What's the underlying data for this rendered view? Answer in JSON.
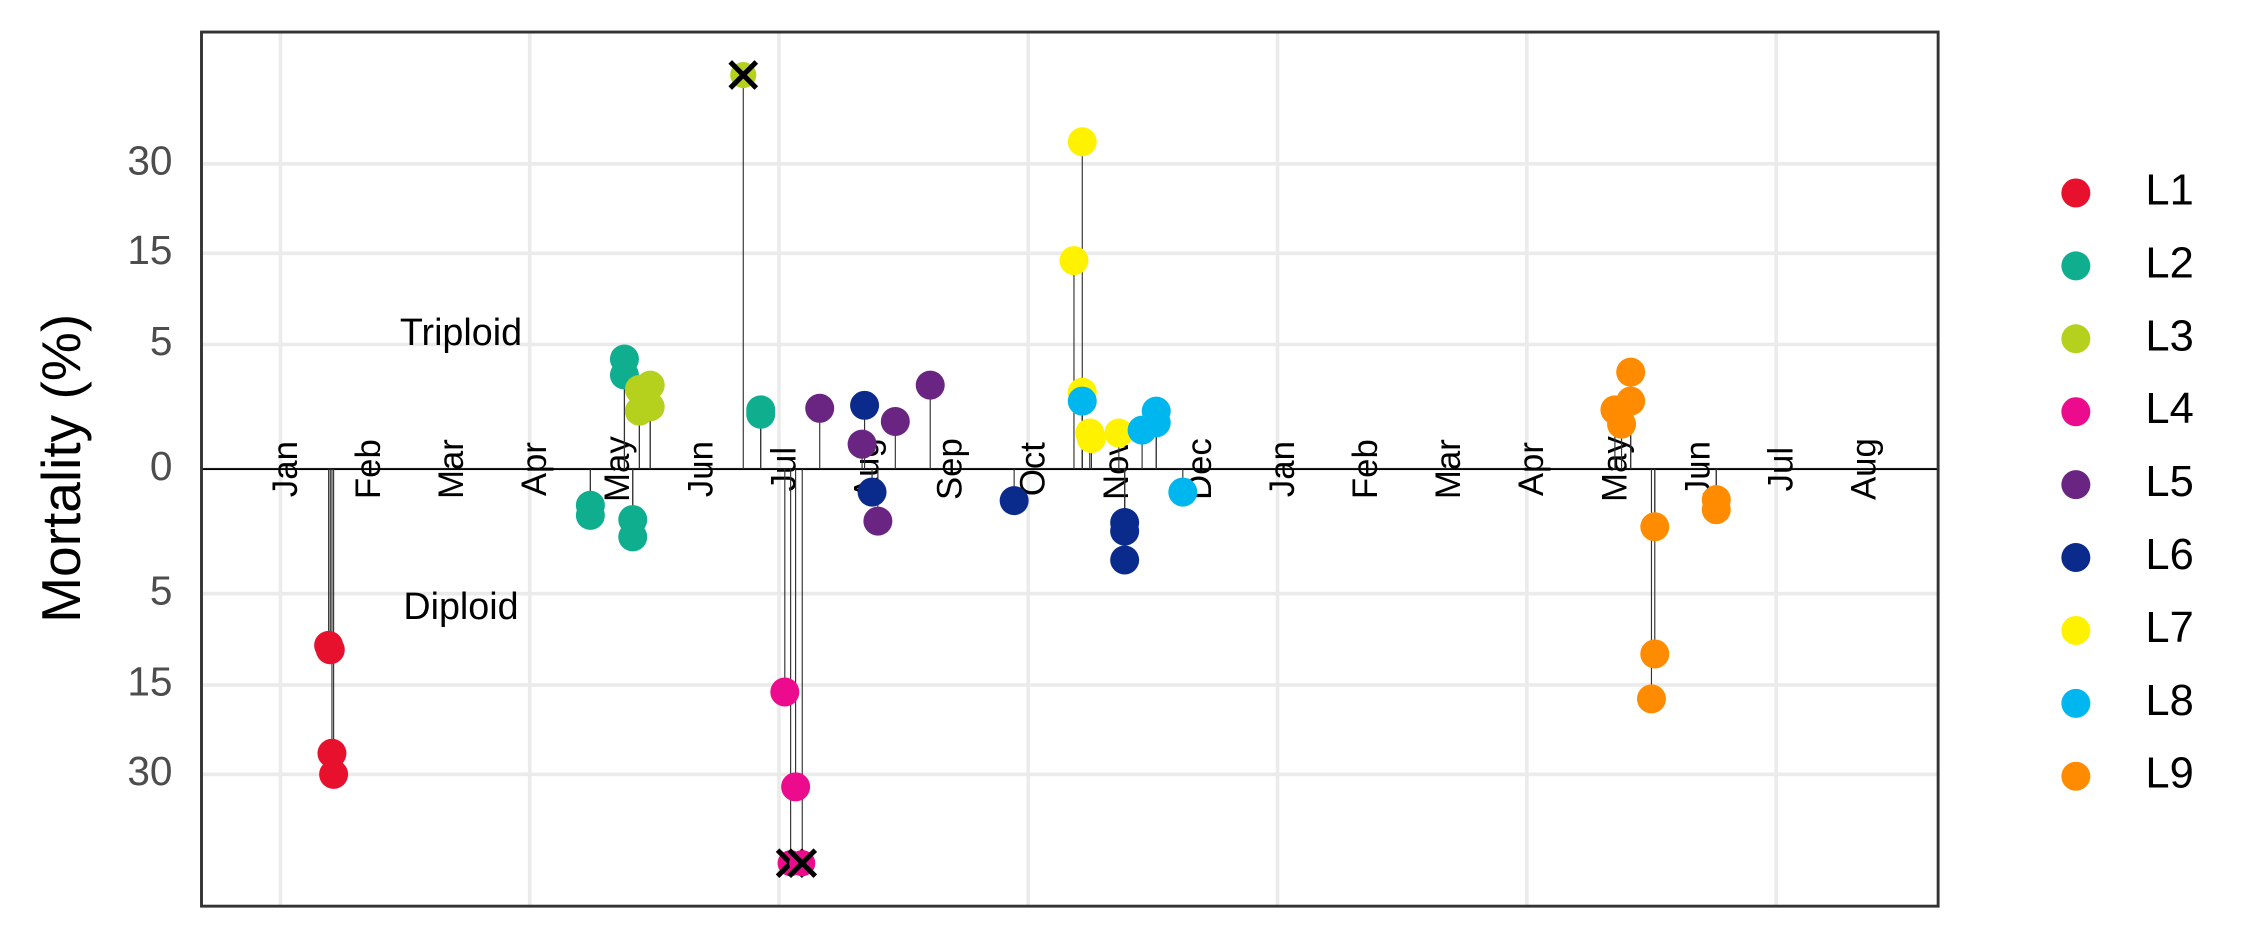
{
  "chart_data": {
    "type": "scatter",
    "y_label": "Mortality (%)",
    "yscale": "signed-sqrt",
    "ylim": [
      -61.5,
      61.5
    ],
    "yticks": [
      {
        "value": -30,
        "label": "30"
      },
      {
        "value": -15,
        "label": "15"
      },
      {
        "value": -5,
        "label": "5"
      },
      0,
      5,
      15,
      30
    ],
    "xlim": [
      0.05,
      20.95
    ],
    "xticks": [
      {
        "value": 1,
        "label": "Jan"
      },
      {
        "value": 2,
        "label": "Feb"
      },
      {
        "value": 3,
        "label": "Mar"
      },
      {
        "value": 4,
        "label": "Apr"
      },
      {
        "value": 5,
        "label": "May"
      },
      {
        "value": 6,
        "label": "Jun"
      },
      {
        "value": 7,
        "label": "Jul"
      },
      {
        "value": 8,
        "label": "Aug"
      },
      {
        "value": 9,
        "label": "Sep"
      },
      {
        "value": 10,
        "label": "Oct"
      },
      {
        "value": 11,
        "label": "Nov"
      },
      {
        "value": 12,
        "label": "Dec"
      },
      {
        "value": 13,
        "label": "Jan"
      },
      {
        "value": 14,
        "label": "Feb"
      },
      {
        "value": 15,
        "label": "Mar"
      },
      {
        "value": 16,
        "label": "Apr"
      },
      {
        "value": 17,
        "label": "May"
      },
      {
        "value": 18,
        "label": "Jun"
      },
      {
        "value": 19,
        "label": "Jul"
      },
      {
        "value": 20,
        "label": "Aug"
      }
    ],
    "grid": true,
    "annotations": [
      "Triploid",
      "Diploid"
    ],
    "series": [
      {
        "name": "L1",
        "color": "#e8112d",
        "x": [
          1.58,
          1.6,
          1.62,
          1.64
        ],
        "values": [
          -10,
          -10.5,
          -26,
          -30
        ]
      },
      {
        "name": "L2",
        "color": "#0fae8f",
        "x": [
          5.14,
          5.14,
          6.78,
          6.78,
          4.73,
          4.73,
          5.24,
          5.24
        ],
        "values": [
          3.9,
          2.85,
          1.13,
          0.97,
          -0.42,
          -0.69,
          -0.82,
          -1.48
        ]
      },
      {
        "name": "L3",
        "color": "#b5d01d",
        "x": [
          5.32,
          5.32,
          5.45,
          5.45,
          6.57
        ],
        "values": [
          2.04,
          1.08,
          2.27,
          1.25,
          50
        ],
        "markers": [
          "o",
          "o",
          "o",
          "o",
          "x"
        ]
      },
      {
        "name": "L4",
        "color": "#ec0b8c",
        "x": [
          7.07,
          7.2,
          7.14,
          7.28
        ],
        "values": [
          -16,
          -32.5,
          -50,
          -50
        ],
        "markers": [
          "o",
          "o",
          "x",
          "x"
        ]
      },
      {
        "name": "L5",
        "color": "#6a2482",
        "x": [
          7.49,
          8.82,
          8.4,
          8.0,
          8.19
        ],
        "values": [
          1.19,
          2.27,
          0.73,
          0.2,
          -0.87
        ]
      },
      {
        "name": "L6",
        "color": "#0a2a8c",
        "x": [
          8.03,
          8.12,
          9.83,
          11.16,
          11.16,
          11.16
        ],
        "values": [
          1.31,
          -0.17,
          -0.32,
          -0.92,
          -1.24,
          -2.66
        ]
      },
      {
        "name": "L7",
        "color": "#fff200",
        "x": [
          10.65,
          10.55,
          10.65,
          10.74,
          10.76,
          11.09
        ],
        "values": [
          34.5,
          14,
          1.9,
          0.42,
          0.3,
          0.42
        ]
      },
      {
        "name": "L8",
        "color": "#00b6ee",
        "x": [
          10.65,
          11.37,
          11.54,
          11.54,
          11.86
        ],
        "values": [
          1.49,
          0.49,
          1.08,
          0.69,
          -0.17
        ]
      },
      {
        "name": "L9",
        "color": "#ff8c00",
        "x": [
          17.25,
          17.25,
          17.06,
          17.14,
          17.54,
          17.54,
          17.5,
          18.28,
          18.28
        ],
        "values": [
          3.03,
          1.49,
          1.13,
          0.65,
          -1.07,
          -11,
          -17,
          -0.3,
          -0.53
        ]
      }
    ]
  }
}
